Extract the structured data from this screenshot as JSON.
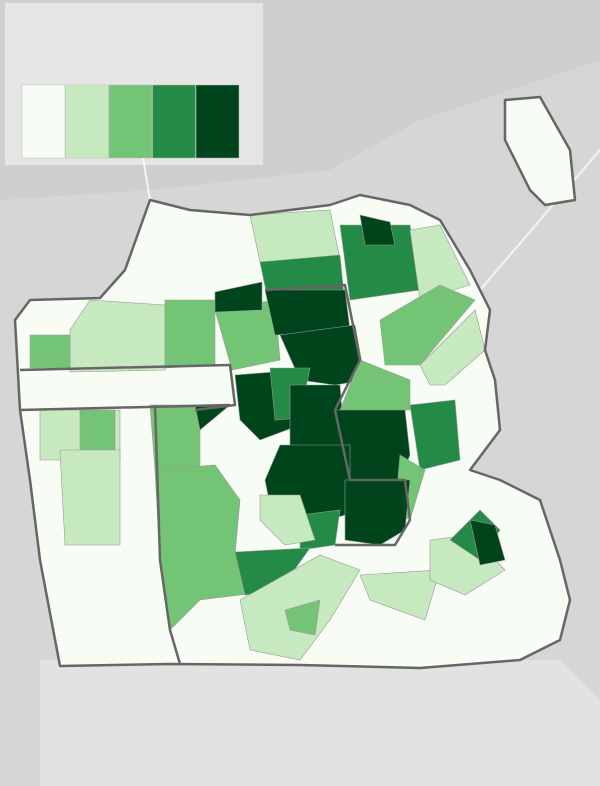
{
  "legend": {
    "colors": [
      "#f7fcf5",
      "#c7e9c0",
      "#74c476",
      "#238b45",
      "#00441b"
    ]
  }
}
